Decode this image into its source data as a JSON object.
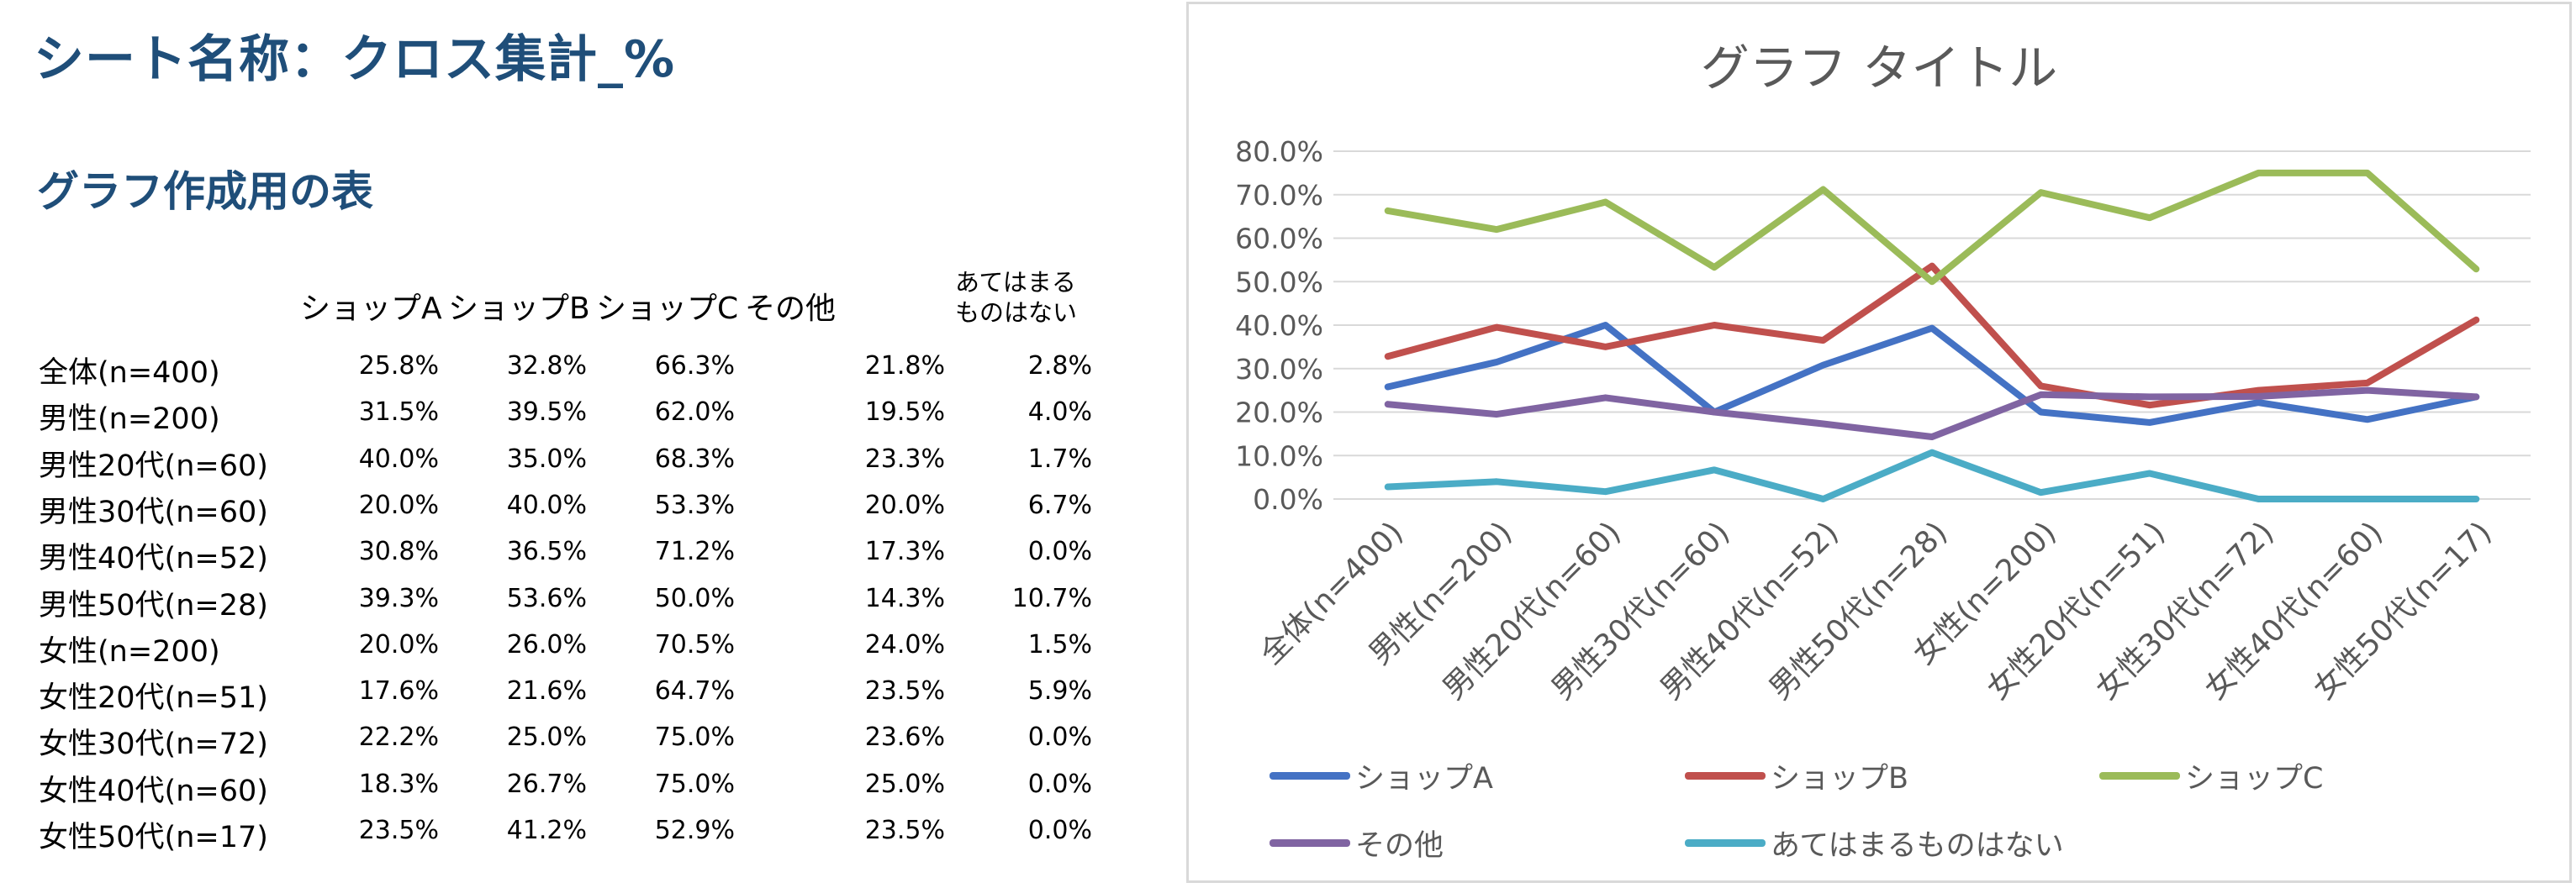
{
  "page": {
    "sheet_title": "シート名称：クロス集計_%",
    "section_title": "グラフ作成用の表"
  },
  "table": {
    "headers": [
      "ショップA",
      "ショップB",
      "ショップC",
      "その他",
      "あてはまる\nものはない"
    ],
    "header_last_line1": "あてはまる",
    "header_last_line2": "ものはない",
    "rows": [
      {
        "label": "全体(n=400)",
        "cells": [
          "25.8%",
          "32.8%",
          "66.3%",
          "21.8%",
          "2.8%"
        ]
      },
      {
        "label": "男性(n=200)",
        "cells": [
          "31.5%",
          "39.5%",
          "62.0%",
          "19.5%",
          "4.0%"
        ]
      },
      {
        "label": "男性20代(n=60)",
        "cells": [
          "40.0%",
          "35.0%",
          "68.3%",
          "23.3%",
          "1.7%"
        ]
      },
      {
        "label": "男性30代(n=60)",
        "cells": [
          "20.0%",
          "40.0%",
          "53.3%",
          "20.0%",
          "6.7%"
        ]
      },
      {
        "label": "男性40代(n=52)",
        "cells": [
          "30.8%",
          "36.5%",
          "71.2%",
          "17.3%",
          "0.0%"
        ]
      },
      {
        "label": "男性50代(n=28)",
        "cells": [
          "39.3%",
          "53.6%",
          "50.0%",
          "14.3%",
          "10.7%"
        ]
      },
      {
        "label": "女性(n=200)",
        "cells": [
          "20.0%",
          "26.0%",
          "70.5%",
          "24.0%",
          "1.5%"
        ]
      },
      {
        "label": "女性20代(n=51)",
        "cells": [
          "17.6%",
          "21.6%",
          "64.7%",
          "23.5%",
          "5.9%"
        ]
      },
      {
        "label": "女性30代(n=72)",
        "cells": [
          "22.2%",
          "25.0%",
          "75.0%",
          "23.6%",
          "0.0%"
        ]
      },
      {
        "label": "女性40代(n=60)",
        "cells": [
          "18.3%",
          "26.7%",
          "75.0%",
          "25.0%",
          "0.0%"
        ]
      },
      {
        "label": "女性50代(n=17)",
        "cells": [
          "23.5%",
          "41.2%",
          "52.9%",
          "23.5%",
          "0.0%"
        ]
      }
    ]
  },
  "chart_data": {
    "type": "line",
    "title": "グラフ タイトル",
    "xlabel": "",
    "ylabel": "",
    "ylim": [
      0,
      80
    ],
    "y_ticks": [
      "0.0%",
      "10.0%",
      "20.0%",
      "30.0%",
      "40.0%",
      "50.0%",
      "60.0%",
      "70.0%",
      "80.0%"
    ],
    "grid": true,
    "legend_position": "bottom",
    "categories": [
      "全体(n=400)",
      "男性(n=200)",
      "男性20代(n=60)",
      "男性30代(n=60)",
      "男性40代(n=52)",
      "男性50代(n=28)",
      "女性(n=200)",
      "女性20代(n=51)",
      "女性30代(n=72)",
      "女性40代(n=60)",
      "女性50代(n=17)"
    ],
    "series": [
      {
        "name": "ショップA",
        "color": "#4472c4",
        "values": [
          25.8,
          31.5,
          40.0,
          20.0,
          30.8,
          39.3,
          20.0,
          17.6,
          22.2,
          18.3,
          23.5
        ]
      },
      {
        "name": "ショップB",
        "color": "#c0504d",
        "values": [
          32.8,
          39.5,
          35.0,
          40.0,
          36.5,
          53.6,
          26.0,
          21.6,
          25.0,
          26.7,
          41.2
        ]
      },
      {
        "name": "ショップC",
        "color": "#9bbb59",
        "values": [
          66.3,
          62.0,
          68.3,
          53.3,
          71.2,
          50.0,
          70.5,
          64.7,
          75.0,
          75.0,
          52.9
        ]
      },
      {
        "name": "その他",
        "color": "#8064a2",
        "values": [
          21.8,
          19.5,
          23.3,
          20.0,
          17.3,
          14.3,
          24.0,
          23.5,
          23.6,
          25.0,
          23.5
        ]
      },
      {
        "name": "あてはまるものはない",
        "color": "#4bacc6",
        "values": [
          2.8,
          4.0,
          1.7,
          6.7,
          0.0,
          10.7,
          1.5,
          5.9,
          0.0,
          0.0,
          0.0
        ]
      }
    ]
  }
}
